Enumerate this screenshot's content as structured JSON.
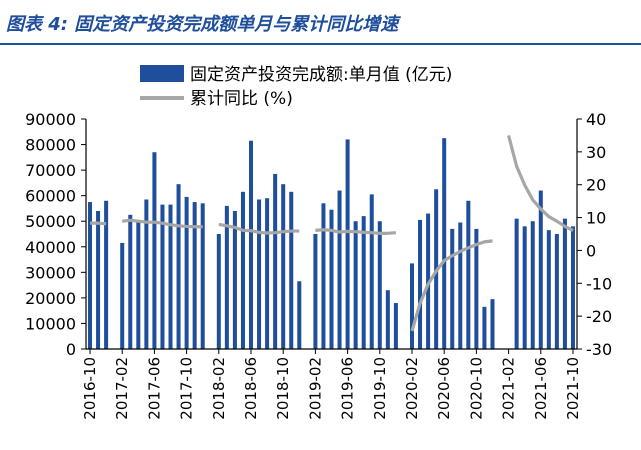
{
  "figure": {
    "title": "图表 4:  固定资产投资完成额单月与累计同比增速"
  },
  "colors": {
    "bar": "#1f4e9c",
    "line": "#a6a6a6",
    "title": "#1f4e9c",
    "axis": "#000000"
  },
  "chart_data": {
    "type": "bar",
    "categories": [
      "2016-10",
      "2016-11",
      "2016-12",
      "2017-01",
      "2017-02",
      "2017-03",
      "2017-04",
      "2017-05",
      "2017-06",
      "2017-07",
      "2017-08",
      "2017-09",
      "2017-10",
      "2017-11",
      "2017-12",
      "2018-01",
      "2018-02",
      "2018-03",
      "2018-04",
      "2018-05",
      "2018-06",
      "2018-07",
      "2018-08",
      "2018-09",
      "2018-10",
      "2018-11",
      "2018-12",
      "2019-01",
      "2019-02",
      "2019-03",
      "2019-04",
      "2019-05",
      "2019-06",
      "2019-07",
      "2019-08",
      "2019-09",
      "2019-10",
      "2019-11",
      "2019-12",
      "2020-01",
      "2020-02",
      "2020-03",
      "2020-04",
      "2020-05",
      "2020-06",
      "2020-07",
      "2020-08",
      "2020-09",
      "2020-10",
      "2020-11",
      "2020-12",
      "2021-01",
      "2021-02",
      "2021-03",
      "2021-04",
      "2021-05",
      "2021-06",
      "2021-07",
      "2021-08",
      "2021-09",
      "2021-10"
    ],
    "x_tick_labels": [
      "2016-10",
      "2017-02",
      "2017-06",
      "2017-10",
      "2018-02",
      "2018-06",
      "2018-10",
      "2019-02",
      "2019-06",
      "2019-10",
      "2020-02",
      "2020-06",
      "2020-10",
      "2021-02",
      "2021-06",
      "2021-10"
    ],
    "series": [
      {
        "name": "固定资产投资完成额:单月值 (亿元)",
        "type": "bar",
        "axis": "left",
        "values": [
          57500,
          54000,
          58000,
          null,
          41500,
          52500,
          49500,
          58500,
          77000,
          56500,
          56500,
          64500,
          59500,
          57500,
          57000,
          null,
          45000,
          56000,
          54000,
          61500,
          81500,
          58500,
          59000,
          68500,
          64500,
          61500,
          26500,
          null,
          45000,
          57000,
          54500,
          62000,
          82000,
          50000,
          52000,
          60500,
          50000,
          23000,
          18000,
          null,
          33500,
          50500,
          53000,
          62500,
          82500,
          47000,
          49500,
          58000,
          47000,
          16500,
          19500,
          null,
          null,
          51000,
          48000,
          50000,
          62000,
          46500,
          45000,
          51000,
          48000
        ]
      },
      {
        "name": "累计同比 (%)",
        "type": "line",
        "axis": "right",
        "values": [
          8.3,
          8.3,
          8.1,
          null,
          8.9,
          9.2,
          8.9,
          8.6,
          8.6,
          8.3,
          7.8,
          7.5,
          7.3,
          7.2,
          7.2,
          null,
          7.9,
          7.5,
          7.0,
          6.1,
          6.0,
          5.5,
          5.3,
          5.4,
          5.7,
          5.9,
          5.9,
          null,
          6.1,
          6.3,
          6.1,
          5.6,
          5.8,
          5.7,
          5.5,
          5.4,
          5.2,
          5.2,
          5.4,
          null,
          -24.5,
          -16.1,
          -10.3,
          -6.3,
          -3.1,
          -1.6,
          -0.3,
          0.8,
          1.8,
          2.6,
          2.9,
          null,
          35.0,
          25.6,
          19.9,
          15.4,
          12.6,
          10.3,
          8.9,
          7.3,
          6.1
        ]
      }
    ],
    "yleft_lim": [
      0,
      90000
    ],
    "yleft_ticks": [
      0,
      10000,
      20000,
      30000,
      40000,
      50000,
      60000,
      70000,
      80000,
      90000
    ],
    "yright_lim": [
      -30,
      40
    ],
    "yright_ticks": [
      -30,
      -20,
      -10,
      0,
      10,
      20,
      30,
      40
    ],
    "grid": false,
    "legend_position": "top"
  }
}
